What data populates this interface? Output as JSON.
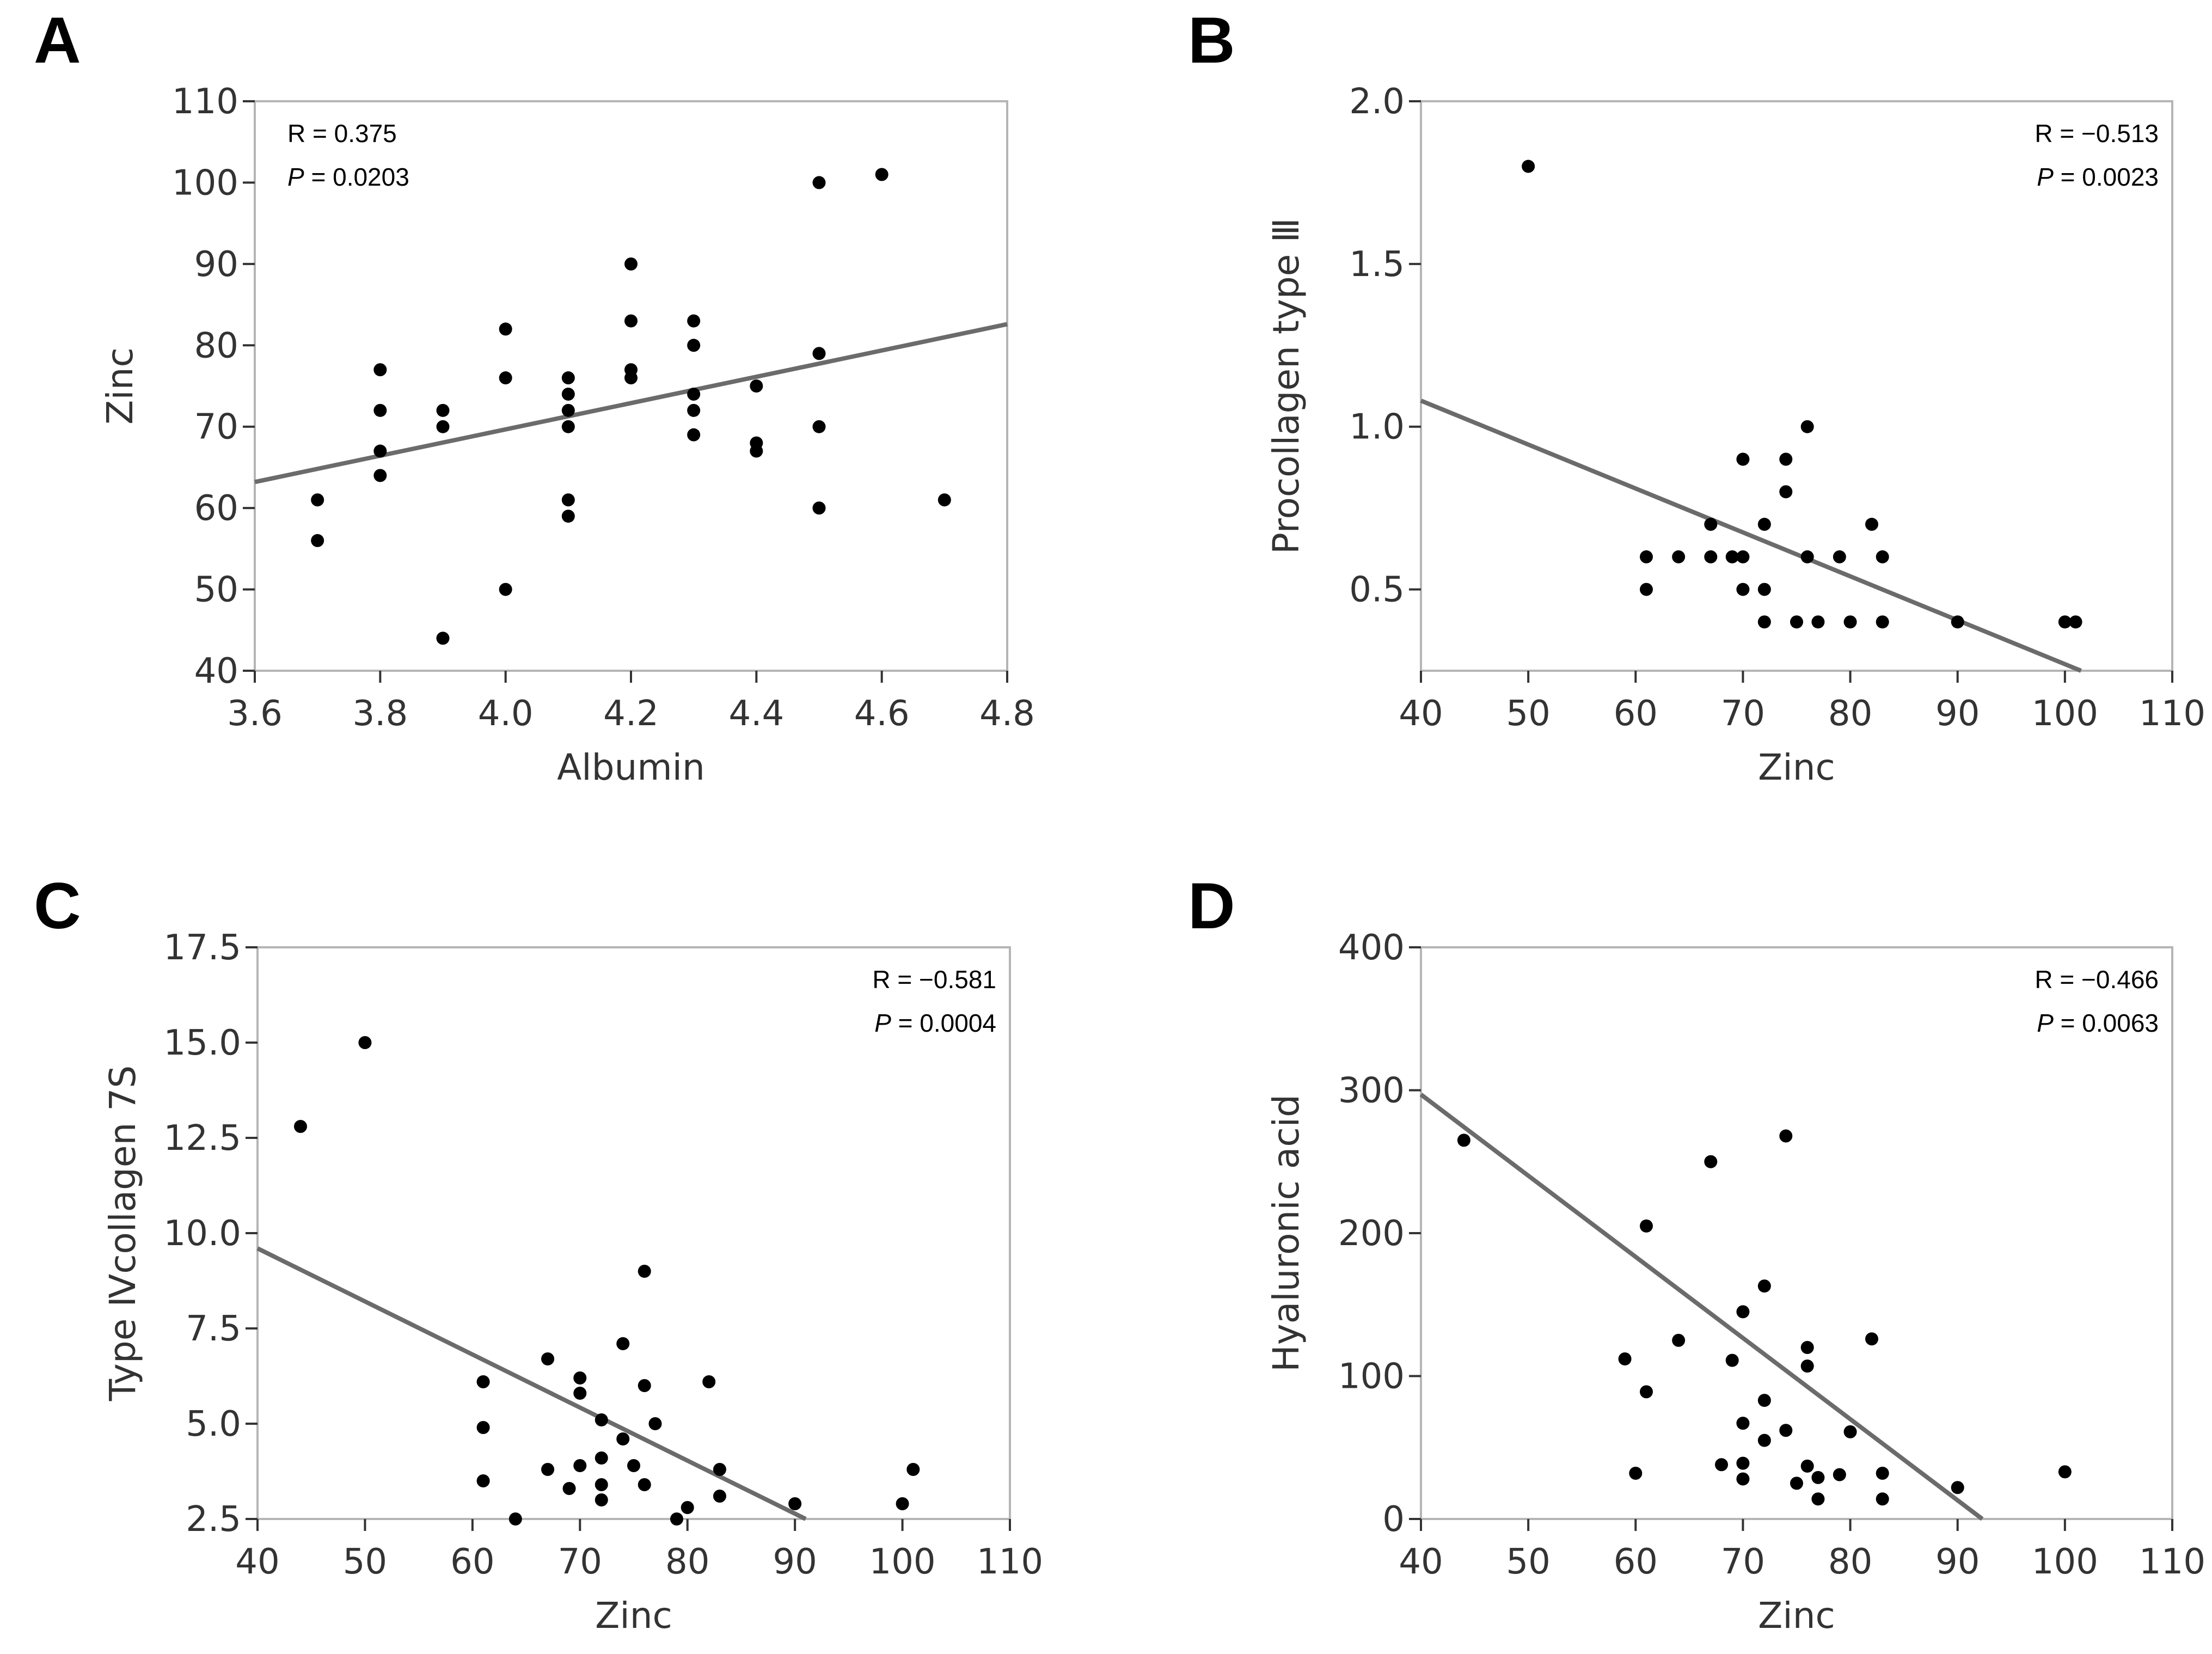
{
  "chart_data": [
    {
      "type": "scatter",
      "panel": "A",
      "xlabel": "Albumin",
      "ylabel": "Zinc",
      "xlim": [
        3.6,
        4.8
      ],
      "ylim": [
        40,
        110
      ],
      "xticks": [
        "3.6",
        "3.8",
        "4.0",
        "4.2",
        "4.4",
        "4.6",
        "4.8"
      ],
      "yticks": [
        "40",
        "50",
        "60",
        "70",
        "80",
        "90",
        "100",
        "110"
      ],
      "stats": {
        "r_label": "R = 0.375",
        "p_italic": "P",
        "p_value": " = 0.0203",
        "corner": "top-left"
      },
      "fit_line": {
        "x": [
          3.6,
          4.8
        ],
        "y": [
          63.2,
          82.6
        ]
      },
      "points": [
        [
          3.7,
          61
        ],
        [
          3.7,
          56
        ],
        [
          3.8,
          77
        ],
        [
          3.8,
          72
        ],
        [
          3.8,
          67
        ],
        [
          3.8,
          64
        ],
        [
          3.9,
          72
        ],
        [
          3.9,
          70
        ],
        [
          3.9,
          44
        ],
        [
          4.0,
          82
        ],
        [
          4.0,
          76
        ],
        [
          4.0,
          50
        ],
        [
          4.1,
          76
        ],
        [
          4.1,
          74
        ],
        [
          4.1,
          72
        ],
        [
          4.1,
          70
        ],
        [
          4.1,
          61
        ],
        [
          4.1,
          59
        ],
        [
          4.2,
          90
        ],
        [
          4.2,
          83
        ],
        [
          4.2,
          77
        ],
        [
          4.2,
          76
        ],
        [
          4.3,
          83
        ],
        [
          4.3,
          80
        ],
        [
          4.3,
          74
        ],
        [
          4.3,
          72
        ],
        [
          4.3,
          69
        ],
        [
          4.4,
          75
        ],
        [
          4.4,
          68
        ],
        [
          4.4,
          67
        ],
        [
          4.5,
          100
        ],
        [
          4.5,
          79
        ],
        [
          4.5,
          70
        ],
        [
          4.5,
          60
        ],
        [
          4.6,
          101
        ],
        [
          4.7,
          61
        ]
      ]
    },
    {
      "type": "scatter",
      "panel": "B",
      "xlabel": "Zinc",
      "ylabel": "Procollagen type Ⅲ",
      "xlim": [
        40,
        110
      ],
      "ylim": [
        0.25,
        2.0
      ],
      "xticks": [
        "40",
        "50",
        "60",
        "70",
        "80",
        "90",
        "100",
        "110"
      ],
      "yticks": [
        "0.5",
        "1.0",
        "1.5",
        "2.0"
      ],
      "stats": {
        "r_label": "R = −0.513",
        "p_italic": "P",
        "p_value": " = 0.0023",
        "corner": "top-right"
      },
      "fit_line": {
        "x": [
          40,
          101.5
        ],
        "y": [
          1.08,
          0.25
        ]
      },
      "points": [
        [
          50,
          1.8
        ],
        [
          61,
          0.6
        ],
        [
          61,
          0.5
        ],
        [
          64,
          0.6
        ],
        [
          67,
          0.7
        ],
        [
          67,
          0.6
        ],
        [
          69,
          0.6
        ],
        [
          70,
          0.9
        ],
        [
          70,
          0.6
        ],
        [
          70,
          0.5
        ],
        [
          72,
          0.7
        ],
        [
          72,
          0.5
        ],
        [
          72,
          0.4
        ],
        [
          74,
          0.9
        ],
        [
          74,
          0.8
        ],
        [
          75,
          0.4
        ],
        [
          76,
          1.0
        ],
        [
          76,
          0.6
        ],
        [
          77,
          0.4
        ],
        [
          79,
          0.6
        ],
        [
          80,
          0.4
        ],
        [
          82,
          0.7
        ],
        [
          83,
          0.6
        ],
        [
          83,
          0.4
        ],
        [
          90,
          0.4
        ],
        [
          100,
          0.4
        ],
        [
          101,
          0.4
        ]
      ]
    },
    {
      "type": "scatter",
      "panel": "C",
      "xlabel": "Zinc",
      "ylabel": "Type Ⅳcollagen 7S",
      "xlim": [
        40,
        110
      ],
      "ylim": [
        2.5,
        17.5
      ],
      "xticks": [
        "40",
        "50",
        "60",
        "70",
        "80",
        "90",
        "100",
        "110"
      ],
      "yticks": [
        "2.5",
        "5.0",
        "7.5",
        "10.0",
        "12.5",
        "15.0",
        "17.5"
      ],
      "stats": {
        "r_label": "R = −0.581",
        "p_italic": "P",
        "p_value": " = 0.0004",
        "corner": "top-right"
      },
      "fit_line": {
        "x": [
          40,
          91
        ],
        "y": [
          9.6,
          2.5
        ]
      },
      "points": [
        [
          44,
          12.8
        ],
        [
          50,
          15.0
        ],
        [
          61,
          6.1
        ],
        [
          61,
          4.9
        ],
        [
          61,
          3.5
        ],
        [
          64,
          2.5
        ],
        [
          67,
          6.7
        ],
        [
          67,
          3.8
        ],
        [
          69,
          3.3
        ],
        [
          70,
          6.2
        ],
        [
          70,
          5.8
        ],
        [
          70,
          3.9
        ],
        [
          72,
          5.1
        ],
        [
          72,
          4.1
        ],
        [
          72,
          3.4
        ],
        [
          72,
          3.0
        ],
        [
          74,
          7.1
        ],
        [
          74,
          4.6
        ],
        [
          75,
          3.9
        ],
        [
          76,
          9.0
        ],
        [
          76,
          6.0
        ],
        [
          76,
          3.4
        ],
        [
          77,
          5.0
        ],
        [
          79,
          2.5
        ],
        [
          80,
          2.8
        ],
        [
          82,
          6.1
        ],
        [
          83,
          3.8
        ],
        [
          83,
          3.1
        ],
        [
          90,
          2.9
        ],
        [
          100,
          2.9
        ],
        [
          101,
          3.8
        ]
      ]
    },
    {
      "type": "scatter",
      "panel": "D",
      "xlabel": "Zinc",
      "ylabel": "Hyaluronic acid",
      "xlim": [
        40,
        110
      ],
      "ylim": [
        0,
        400
      ],
      "xticks": [
        "40",
        "50",
        "60",
        "70",
        "80",
        "90",
        "100",
        "110"
      ],
      "yticks": [
        "0",
        "100",
        "200",
        "300",
        "400"
      ],
      "stats": {
        "r_label": "R = −0.466",
        "p_italic": "P",
        "p_value": " = 0.0063",
        "corner": "top-right"
      },
      "fit_line": {
        "x": [
          40,
          92.3
        ],
        "y": [
          297,
          0
        ]
      },
      "points": [
        [
          44,
          265
        ],
        [
          59,
          112
        ],
        [
          60,
          32
        ],
        [
          61,
          205
        ],
        [
          61,
          89
        ],
        [
          64,
          125
        ],
        [
          67,
          250
        ],
        [
          68,
          38
        ],
        [
          69,
          111
        ],
        [
          70,
          145
        ],
        [
          70,
          67
        ],
        [
          70,
          39
        ],
        [
          70,
          28
        ],
        [
          72,
          163
        ],
        [
          72,
          83
        ],
        [
          72,
          55
        ],
        [
          74,
          268
        ],
        [
          74,
          62
        ],
        [
          75,
          25
        ],
        [
          76,
          120
        ],
        [
          76,
          107
        ],
        [
          76,
          37
        ],
        [
          77,
          29
        ],
        [
          77,
          14
        ],
        [
          79,
          31
        ],
        [
          80,
          61
        ],
        [
          82,
          126
        ],
        [
          83,
          32
        ],
        [
          83,
          14
        ],
        [
          90,
          22
        ],
        [
          100,
          33
        ]
      ]
    }
  ]
}
